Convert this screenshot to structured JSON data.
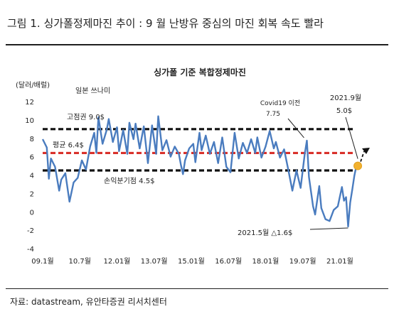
{
  "figure_title": "그림 1. 싱가폴정제마진 추이 : 9 월 난방유 중심의 마진 회복 속도 빨라",
  "source": "자료: datastream, 유안타증권 리서치센터",
  "colors": {
    "line": "#4a7cbf",
    "reference_line": "#111111",
    "average_line": "#d9312b",
    "highlight_point": "#f2b12e"
  },
  "chart_data": {
    "type": "line",
    "title": "싱가폴 기준 복합정제마진",
    "ylabel": "(달러/배럴)",
    "xlabel": "",
    "ylim": [
      -4,
      12
    ],
    "yticks": [
      -4,
      -2,
      0,
      2,
      4,
      6,
      8,
      10,
      12
    ],
    "xticks": [
      "09.1월",
      "10.7월",
      "12.01월",
      "13.07월",
      "15.01월",
      "16.07월",
      "18.01월",
      "19.07월",
      "21.01월"
    ],
    "x_domain": [
      "2009-01",
      "2021-10"
    ],
    "x_ticks_dates": [
      "2009-01",
      "2010-07",
      "2012-01",
      "2013-07",
      "2015-01",
      "2016-07",
      "2018-01",
      "2019-07",
      "2021-01"
    ],
    "grid": false,
    "series": [
      {
        "points": [
          {
            "x": "2009-01",
            "y": 7.9
          },
          {
            "x": "2009-03",
            "y": 7.0
          },
          {
            "x": "2009-04",
            "y": 3.6
          },
          {
            "x": "2009-05",
            "y": 5.8
          },
          {
            "x": "2009-07",
            "y": 4.9
          },
          {
            "x": "2009-09",
            "y": 2.3
          },
          {
            "x": "2009-10",
            "y": 3.5
          },
          {
            "x": "2009-12",
            "y": 4.2
          },
          {
            "x": "2010-02",
            "y": 1.1
          },
          {
            "x": "2010-04",
            "y": 3.2
          },
          {
            "x": "2010-06",
            "y": 3.7
          },
          {
            "x": "2010-08",
            "y": 5.6
          },
          {
            "x": "2010-10",
            "y": 4.6
          },
          {
            "x": "2010-12",
            "y": 7.1
          },
          {
            "x": "2011-02",
            "y": 8.6
          },
          {
            "x": "2011-03",
            "y": 6.4
          },
          {
            "x": "2011-04",
            "y": 10.3
          },
          {
            "x": "2011-06",
            "y": 7.4
          },
          {
            "x": "2011-08",
            "y": 8.9
          },
          {
            "x": "2011-09",
            "y": 10.1
          },
          {
            "x": "2011-11",
            "y": 7.6
          },
          {
            "x": "2012-01",
            "y": 9.2
          },
          {
            "x": "2012-02",
            "y": 6.6
          },
          {
            "x": "2012-04",
            "y": 8.9
          },
          {
            "x": "2012-06",
            "y": 6.3
          },
          {
            "x": "2012-07",
            "y": 9.7
          },
          {
            "x": "2012-09",
            "y": 7.9
          },
          {
            "x": "2012-10",
            "y": 9.6
          },
          {
            "x": "2012-12",
            "y": 6.9
          },
          {
            "x": "2013-02",
            "y": 9.3
          },
          {
            "x": "2013-04",
            "y": 5.3
          },
          {
            "x": "2013-06",
            "y": 9.4
          },
          {
            "x": "2013-08",
            "y": 6.3
          },
          {
            "x": "2013-09",
            "y": 10.4
          },
          {
            "x": "2013-11",
            "y": 6.7
          },
          {
            "x": "2014-01",
            "y": 7.8
          },
          {
            "x": "2014-03",
            "y": 6.0
          },
          {
            "x": "2014-05",
            "y": 7.1
          },
          {
            "x": "2014-07",
            "y": 6.3
          },
          {
            "x": "2014-08",
            "y": 5.1
          },
          {
            "x": "2014-09",
            "y": 4.1
          },
          {
            "x": "2014-10",
            "y": 5.6
          },
          {
            "x": "2014-12",
            "y": 6.9
          },
          {
            "x": "2015-02",
            "y": 7.4
          },
          {
            "x": "2015-03",
            "y": 5.4
          },
          {
            "x": "2015-05",
            "y": 8.6
          },
          {
            "x": "2015-06",
            "y": 6.7
          },
          {
            "x": "2015-08",
            "y": 8.3
          },
          {
            "x": "2015-10",
            "y": 6.3
          },
          {
            "x": "2015-12",
            "y": 7.6
          },
          {
            "x": "2016-02",
            "y": 5.3
          },
          {
            "x": "2016-04",
            "y": 8.1
          },
          {
            "x": "2016-06",
            "y": 4.9
          },
          {
            "x": "2016-08",
            "y": 4.3
          },
          {
            "x": "2016-10",
            "y": 8.6
          },
          {
            "x": "2016-12",
            "y": 5.8
          },
          {
            "x": "2017-02",
            "y": 7.5
          },
          {
            "x": "2017-04",
            "y": 6.4
          },
          {
            "x": "2017-06",
            "y": 7.9
          },
          {
            "x": "2017-08",
            "y": 6.4
          },
          {
            "x": "2017-09",
            "y": 8.1
          },
          {
            "x": "2017-11",
            "y": 5.9
          },
          {
            "x": "2018-01",
            "y": 7.1
          },
          {
            "x": "2018-03",
            "y": 8.8
          },
          {
            "x": "2018-05",
            "y": 6.9
          },
          {
            "x": "2018-06",
            "y": 7.6
          },
          {
            "x": "2018-08",
            "y": 5.9
          },
          {
            "x": "2018-10",
            "y": 6.8
          },
          {
            "x": "2018-12",
            "y": 4.6
          },
          {
            "x": "2019-02",
            "y": 2.3
          },
          {
            "x": "2019-04",
            "y": 4.5
          },
          {
            "x": "2019-06",
            "y": 2.6
          },
          {
            "x": "2019-08",
            "y": 6.3
          },
          {
            "x": "2019-09",
            "y": 7.75
          },
          {
            "x": "2019-10",
            "y": 3.8
          },
          {
            "x": "2019-12",
            "y": 0.6
          },
          {
            "x": "2020-01",
            "y": -0.3
          },
          {
            "x": "2020-03",
            "y": 2.8
          },
          {
            "x": "2020-04",
            "y": 0.4
          },
          {
            "x": "2020-06",
            "y": -0.8
          },
          {
            "x": "2020-08",
            "y": -1.0
          },
          {
            "x": "2020-10",
            "y": 0.2
          },
          {
            "x": "2020-12",
            "y": 0.6
          },
          {
            "x": "2021-02",
            "y": 2.7
          },
          {
            "x": "2021-03",
            "y": 1.2
          },
          {
            "x": "2021-04",
            "y": 1.6
          },
          {
            "x": "2021-05",
            "y": -1.6
          },
          {
            "x": "2021-06",
            "y": 1.0
          },
          {
            "x": "2021-07",
            "y": 2.4
          },
          {
            "x": "2021-08",
            "y": 3.9
          },
          {
            "x": "2021-09",
            "y": 5.0
          }
        ]
      }
    ],
    "reference_lines": [
      {
        "id": "upper",
        "label": "고점권 9.0$",
        "y": 9.0,
        "style": "dashed"
      },
      {
        "id": "average",
        "label": "평균 6.4$",
        "y": 6.4,
        "style": "dashed"
      },
      {
        "id": "breakeven",
        "label": "손익분기점 4.5$",
        "y": 4.5,
        "style": "dashed"
      }
    ],
    "annotations": [
      {
        "id": "japan-tsunami",
        "text": "일본 쓰나미",
        "x": "2011-04",
        "y": 10.3
      },
      {
        "id": "covid",
        "text_lines": [
          "Covid19 이전",
          "7.75"
        ],
        "x": "2019-09",
        "y": 7.75
      },
      {
        "id": "low",
        "text": "2021.5월 △1.6$",
        "x": "2021-05",
        "y": -1.6
      },
      {
        "id": "latest",
        "text_lines": [
          "2021.9월",
          "5.0$"
        ],
        "x": "2021-09",
        "y": 5.0
      }
    ]
  }
}
